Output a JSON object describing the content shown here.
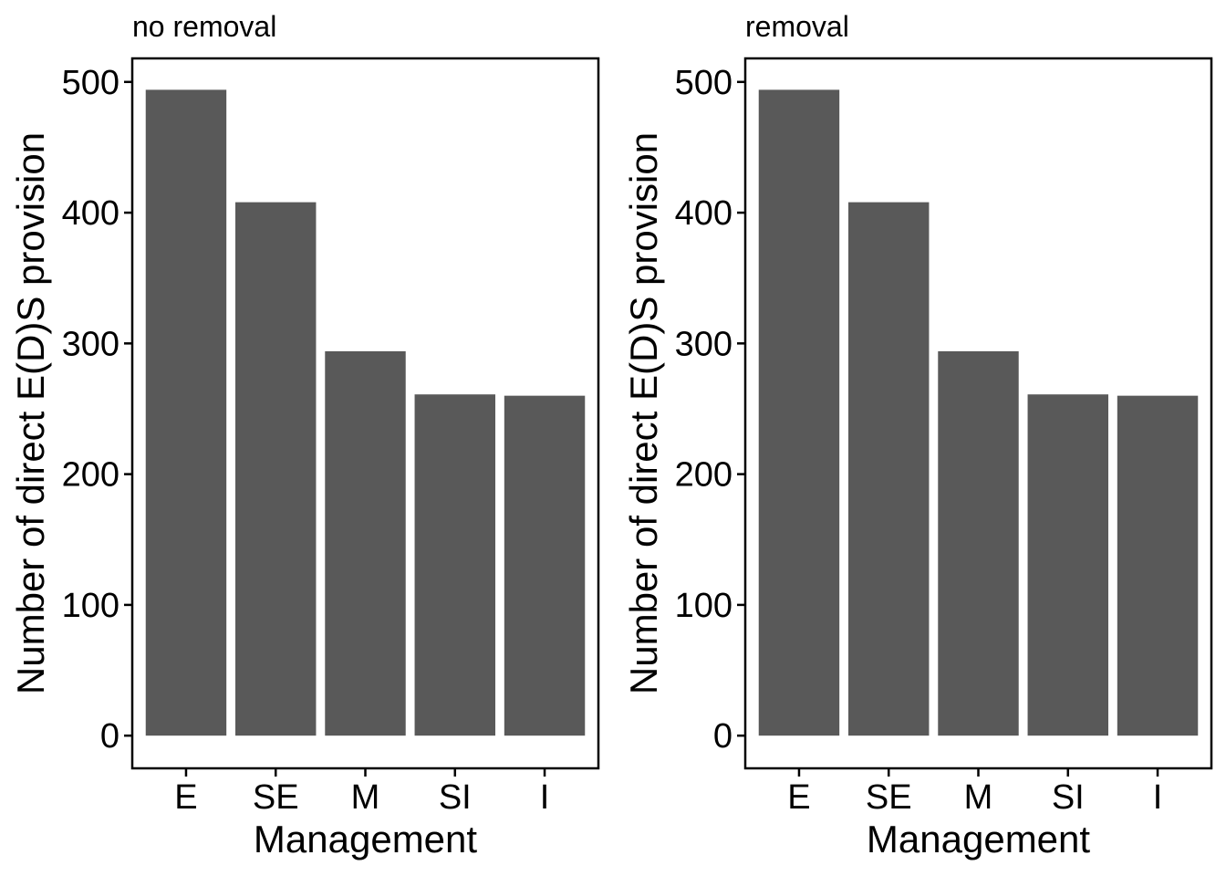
{
  "bar_color": "#595959",
  "chart_data": [
    {
      "type": "bar",
      "title": "no removal",
      "xlabel": "Management",
      "ylabel": "Number of direct E(D)S provision",
      "categories": [
        "E",
        "SE",
        "M",
        "SI",
        "I"
      ],
      "values": [
        494,
        408,
        294,
        261,
        260
      ],
      "ylim": [
        -25,
        518
      ],
      "yticks": [
        0,
        100,
        200,
        300,
        400,
        500
      ],
      "ytick_labels": [
        "0",
        "100",
        "200",
        "300",
        "400",
        "500"
      ],
      "grid": false,
      "legend": "none"
    },
    {
      "type": "bar",
      "title": "removal",
      "xlabel": "Management",
      "ylabel": "Number of direct E(D)S provision",
      "categories": [
        "E",
        "SE",
        "M",
        "SI",
        "I"
      ],
      "values": [
        494,
        408,
        294,
        261,
        260
      ],
      "ylim": [
        -25,
        518
      ],
      "yticks": [
        0,
        100,
        200,
        300,
        400,
        500
      ],
      "ytick_labels": [
        "0",
        "100",
        "200",
        "300",
        "400",
        "500"
      ],
      "grid": false,
      "legend": "none"
    }
  ]
}
